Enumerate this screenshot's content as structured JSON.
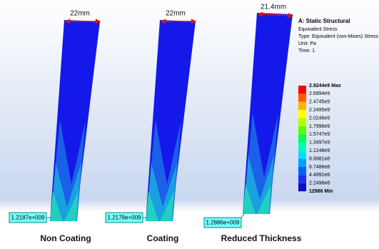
{
  "legend": {
    "title": "A: Static Structural",
    "lines": [
      "Equivalent Stress",
      "Type: Equivalent (von-Mises) Stress",
      "Unit: Pa",
      "Time: 1"
    ],
    "scale_labels": [
      "2.9244e9 Max",
      "2.6994e9",
      "2.4745e9",
      "2.2495e9",
      "2.0246e9",
      "1.7996e9",
      "1.5747e9",
      "1.3497e9",
      "1.1248e9",
      "8.9981e8",
      "6.7486e8",
      "4.4991e8",
      "2.2496e8",
      "12986 Min"
    ],
    "band_colors": [
      "#ff0000",
      "#ff5a00",
      "#ffb400",
      "#ffff00",
      "#b4ff00",
      "#5aff00",
      "#00ff5a",
      "#00ffb4",
      "#00e0ff",
      "#00a0ff",
      "#0060ff",
      "#1a30f0",
      "#0a10c8"
    ]
  },
  "specimens": [
    {
      "label": "Non Coating",
      "dimension": "22mm",
      "probe": "1.2187e+009"
    },
    {
      "label": "Coating",
      "dimension": "22mm",
      "probe": "1.2179e+009"
    },
    {
      "label": "Reduced Thickness",
      "dimension": "21.4mm",
      "probe": "1.2886e+009"
    }
  ]
}
